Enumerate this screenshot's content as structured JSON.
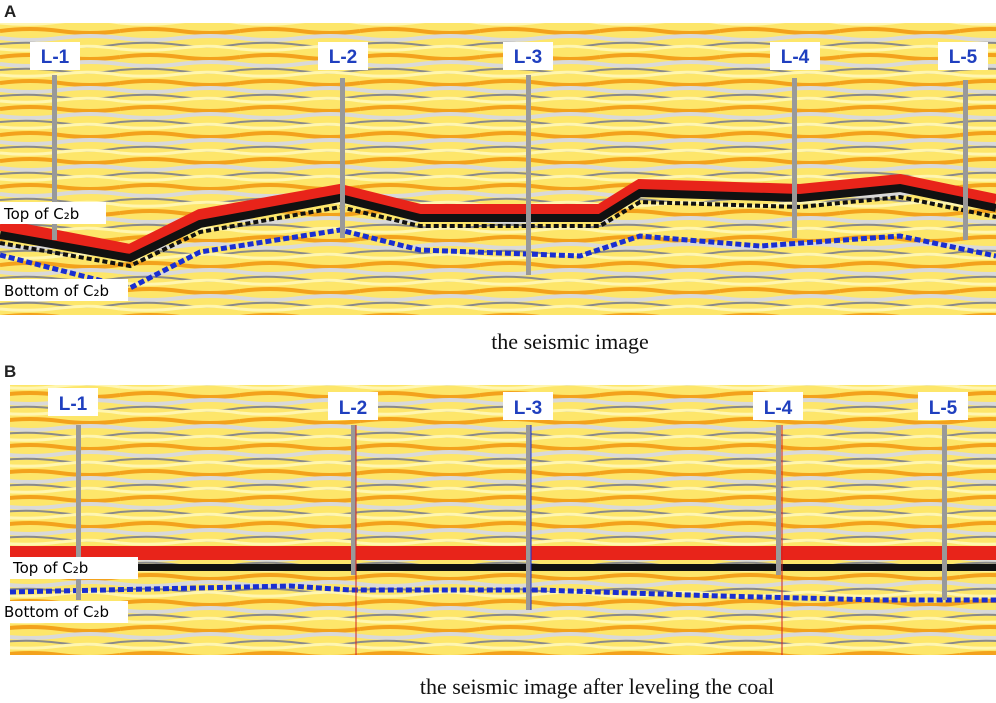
{
  "panels": [
    {
      "label": "A",
      "caption": "the seismic image",
      "wells": [
        "L-1",
        "L-2",
        "L-3",
        "L-4",
        "L-5"
      ],
      "top_label": "Top of C₂b",
      "bottom_label": "Bottom of C₂b"
    },
    {
      "label": "B",
      "caption": "the seismic image after leveling the coal",
      "wells": [
        "L-1",
        "L-2",
        "L-3",
        "L-4",
        "L-5"
      ],
      "top_label": "Top of C₂b",
      "bottom_label": "Bottom of C₂b"
    }
  ]
}
